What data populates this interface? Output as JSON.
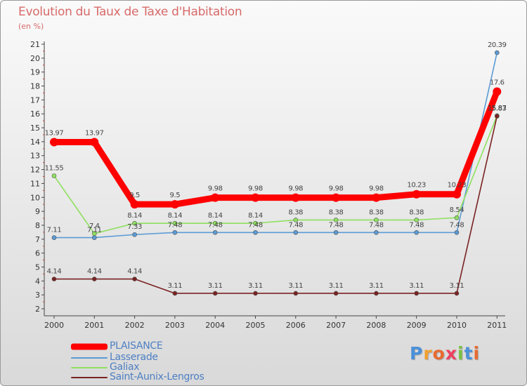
{
  "title": "Evolution du Taux de Taxe d'Habitation",
  "unit": "(en %)",
  "chart_data": {
    "type": "line",
    "x": [
      "2000",
      "2001",
      "2002",
      "2003",
      "2004",
      "2005",
      "2006",
      "2007",
      "2008",
      "2009",
      "2010",
      "2011"
    ],
    "ylim": [
      2,
      21
    ],
    "yticks": [
      2,
      3,
      4,
      5,
      6,
      7,
      8,
      9,
      10,
      11,
      12,
      13,
      14,
      15,
      16,
      17,
      18,
      19,
      20,
      21
    ],
    "grid": false,
    "legend_position": "bottom-left",
    "series": [
      {
        "name": "Lasserade",
        "color": "#5b9bd5",
        "values": [
          7.11,
          7.11,
          7.33,
          7.48,
          7.48,
          7.48,
          7.48,
          7.48,
          7.48,
          7.48,
          7.48,
          20.39
        ],
        "labels": [
          "7.11",
          "7.11",
          "7.33",
          "7.48",
          "7.48",
          "7.48",
          "7.48",
          "7.48",
          "7.48",
          "7.48",
          "7.48",
          "20.39"
        ]
      },
      {
        "name": "Galiax",
        "color": "#8fe060",
        "values": [
          11.55,
          7.4,
          8.14,
          8.14,
          8.14,
          8.14,
          8.38,
          8.38,
          8.38,
          8.38,
          8.54,
          15.87
        ],
        "labels": [
          "11.55",
          "7.4",
          "8.14",
          "8.14",
          "8.14",
          "8.14",
          "8.38",
          "8.38",
          "8.38",
          "8.38",
          "8.54",
          "15.87"
        ]
      },
      {
        "name": "Saint-Aunix-Lengros",
        "color": "#7a2222",
        "values": [
          4.14,
          4.14,
          4.14,
          3.11,
          3.11,
          3.11,
          3.11,
          3.11,
          3.11,
          3.11,
          3.11,
          15.83
        ],
        "labels": [
          "4.14",
          "4.14",
          "4.14",
          "3.11",
          "3.11",
          "3.11",
          "3.11",
          "3.11",
          "3.11",
          "3.11",
          "3.11",
          "15.83"
        ]
      },
      {
        "name": "PLAISANCE",
        "color": "#ff0000",
        "values": [
          13.97,
          13.97,
          9.5,
          9.5,
          9.98,
          9.98,
          9.98,
          9.98,
          9.98,
          10.23,
          10.23,
          17.6
        ],
        "labels": [
          "13.97",
          "13.97",
          "9.5",
          "9.5",
          "9.98",
          "9.98",
          "9.98",
          "9.98",
          "9.98",
          "10.23",
          "10.23",
          "17.6"
        ]
      }
    ]
  },
  "legend": [
    {
      "name": "PLAISANCE",
      "color": "#ff0000"
    },
    {
      "name": "Lasserade",
      "color": "#5b9bd5"
    },
    {
      "name": "Galiax",
      "color": "#8fe060"
    },
    {
      "name": "Saint-Aunix-Lengros",
      "color": "#7a2222"
    }
  ],
  "logo": {
    "text": "Proxiti",
    "letter_colors": [
      "#4a90d9",
      "#f0a030",
      "#e86a30",
      "#ef4060",
      "#7ac142",
      "#4a90d9",
      "#e86a30"
    ]
  }
}
